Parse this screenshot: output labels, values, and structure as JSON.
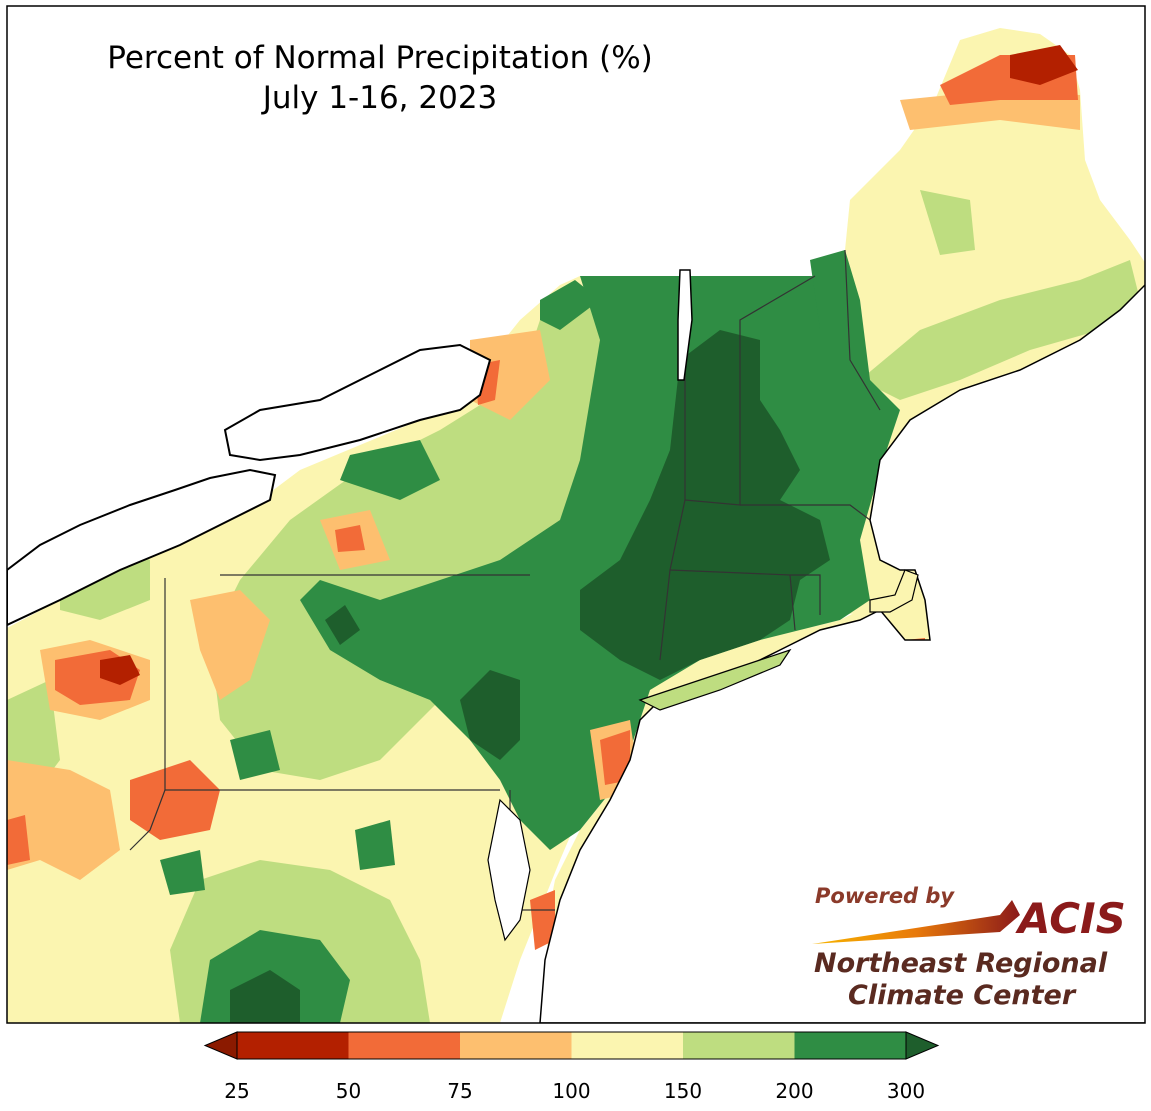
{
  "map": {
    "title_line1": "Percent of Normal Precipitation (%)",
    "title_line2": "July 1-16, 2023"
  },
  "legend": {
    "ticks": [
      "25",
      "50",
      "75",
      "100",
      "150",
      "200",
      "300"
    ],
    "bins": [
      {
        "color": "#b32000"
      },
      {
        "color": "#f26b38"
      },
      {
        "color": "#fdbf6f"
      },
      {
        "color": "#fbf5b0"
      },
      {
        "color": "#bedd80"
      },
      {
        "color": "#2f8d44"
      }
    ],
    "under_color": "#8b1a00",
    "over_color": "#1e5e2c"
  },
  "palette": {
    "deep_red": "#b32000",
    "red": "#f26b38",
    "orange": "#fdbf6f",
    "yellow": "#fbf5b0",
    "light_green": "#bedd80",
    "green": "#2f8d44",
    "dark_green": "#1e5e2c"
  },
  "logo": {
    "powered": "Powered by",
    "acis": "ACIS",
    "org_line1": "Northeast Regional",
    "org_line2": "Climate Center"
  }
}
